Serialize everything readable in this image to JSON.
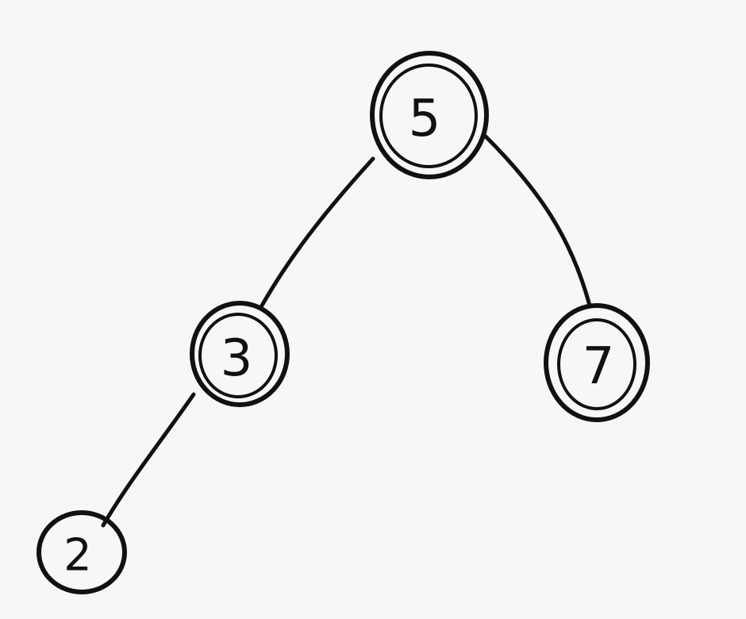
{
  "tree": {
    "nodes": [
      {
        "id": "n5",
        "label": "5",
        "double": true
      },
      {
        "id": "n3",
        "label": "3",
        "double": true
      },
      {
        "id": "n7",
        "label": "7",
        "double": true
      },
      {
        "id": "n2",
        "label": "2",
        "double": false
      }
    ],
    "edges": [
      {
        "from": "5",
        "to": "3"
      },
      {
        "from": "5",
        "to": "7"
      },
      {
        "from": "3",
        "to": "2"
      }
    ]
  },
  "colors": {
    "ink": "#111111",
    "paper": "#f7f7f5"
  }
}
